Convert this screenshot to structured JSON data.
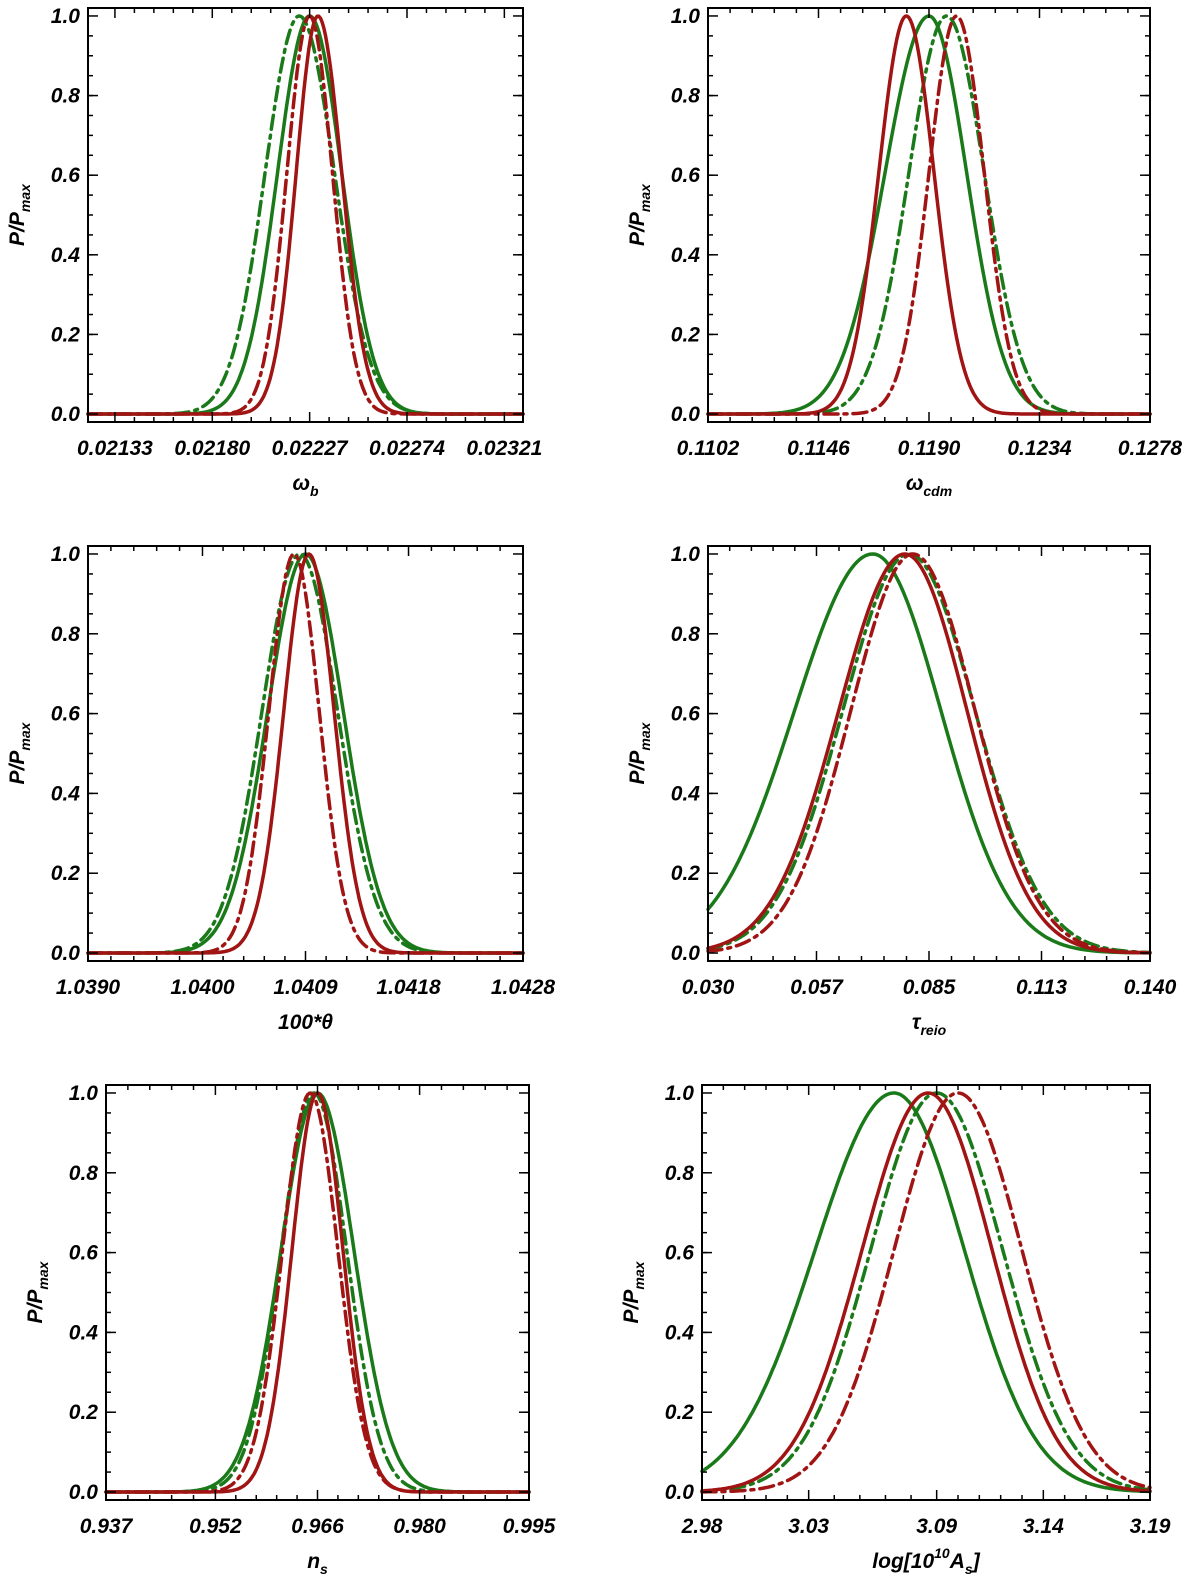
{
  "colors": {
    "green": "#1a7a1a",
    "red": "#a01414",
    "axis": "#000000"
  },
  "chart_data": [
    {
      "type": "line",
      "xlabel": "ωb",
      "xlabel_main": "ω",
      "xlabel_sub": "b",
      "ylabel": "P/Pmax",
      "ylabel_main": "P/P",
      "ylabel_sub": "max",
      "xlim": [
        0.0212,
        0.0233
      ],
      "ylim": [
        -0.02,
        1.02
      ],
      "xticks": [
        0.02133,
        0.0218,
        0.02227,
        0.02274,
        0.02321
      ],
      "xtick_labels": [
        "0.02133",
        "0.02180",
        "0.02227",
        "0.02274",
        "0.02321"
      ],
      "yticks": [
        0.0,
        0.2,
        0.4,
        0.6,
        0.8,
        1.0
      ],
      "ytick_labels": [
        "0.0",
        "0.2",
        "0.4",
        "0.6",
        "0.8",
        "1.0"
      ],
      "series": [
        {
          "name": "green solid",
          "color": "green",
          "dash": "solid",
          "mean": 0.02227,
          "sigma_left": 0.000155,
          "sigma_right": 0.000155
        },
        {
          "name": "green dash-dot",
          "color": "green",
          "dash": "dashdot",
          "mean": 0.02222,
          "sigma_left": 0.000165,
          "sigma_right": 0.00017
        },
        {
          "name": "red solid",
          "color": "red",
          "dash": "solid",
          "mean": 0.02231,
          "sigma_left": 0.000105,
          "sigma_right": 0.000115
        },
        {
          "name": "red dash-dot",
          "color": "red",
          "dash": "dashdot",
          "mean": 0.02227,
          "sigma_left": 0.00011,
          "sigma_right": 0.00011
        }
      ]
    },
    {
      "type": "line",
      "xlabel": "ωcdm",
      "xlabel_main": "ω",
      "xlabel_sub": "cdm",
      "ylabel": "P/Pmax",
      "ylabel_main": "P/P",
      "ylabel_sub": "max",
      "xlim": [
        0.1102,
        0.1278
      ],
      "ylim": [
        -0.02,
        1.02
      ],
      "xticks": [
        0.1102,
        0.1146,
        0.119,
        0.1234,
        0.1278
      ],
      "xtick_labels": [
        "0.1102",
        "0.1146",
        "0.1190",
        "0.1234",
        "0.1278"
      ],
      "yticks": [
        0.0,
        0.2,
        0.4,
        0.6,
        0.8,
        1.0
      ],
      "ytick_labels": [
        "0.0",
        "0.2",
        "0.4",
        "0.6",
        "0.8",
        "1.0"
      ],
      "series": [
        {
          "name": "green solid",
          "color": "green",
          "dash": "solid",
          "mean": 0.119,
          "sigma_left": 0.00175,
          "sigma_right": 0.0015
        },
        {
          "name": "green dash-dot",
          "color": "green",
          "dash": "dashdot",
          "mean": 0.1197,
          "sigma_left": 0.0015,
          "sigma_right": 0.0015
        },
        {
          "name": "red solid",
          "color": "red",
          "dash": "solid",
          "mean": 0.1181,
          "sigma_left": 0.0011,
          "sigma_right": 0.0011
        },
        {
          "name": "red dash-dot",
          "color": "red",
          "dash": "dashdot",
          "mean": 0.1201,
          "sigma_left": 0.0011,
          "sigma_right": 0.0011
        }
      ]
    },
    {
      "type": "line",
      "xlabel": "100*θ",
      "xlabel_main": "100*θ",
      "xlabel_sub": "",
      "ylabel": "P/Pmax",
      "ylabel_main": "P/P",
      "ylabel_sub": "max",
      "xlim": [
        1.039,
        1.0428
      ],
      "ylim": [
        -0.02,
        1.02
      ],
      "xticks": [
        1.039,
        1.04,
        1.0409,
        1.0418,
        1.0428
      ],
      "xtick_labels": [
        "1.0390",
        "1.0400",
        "1.0409",
        "1.0418",
        "1.0428"
      ],
      "yticks": [
        0.0,
        0.2,
        0.4,
        0.6,
        0.8,
        1.0
      ],
      "ytick_labels": [
        "0.0",
        "0.2",
        "0.4",
        "0.6",
        "0.8",
        "1.0"
      ],
      "series": [
        {
          "name": "green solid",
          "color": "green",
          "dash": "solid",
          "mean": 1.0409,
          "sigma_left": 0.00033,
          "sigma_right": 0.00033
        },
        {
          "name": "green dash-dot",
          "color": "green",
          "dash": "dashdot",
          "mean": 1.04085,
          "sigma_left": 0.00033,
          "sigma_right": 0.00033
        },
        {
          "name": "red solid",
          "color": "red",
          "dash": "solid",
          "mean": 1.04093,
          "sigma_left": 0.00022,
          "sigma_right": 0.00022
        },
        {
          "name": "red dash-dot",
          "color": "red",
          "dash": "dashdot",
          "mean": 1.0408,
          "sigma_left": 0.00022,
          "sigma_right": 0.00022
        }
      ]
    },
    {
      "type": "line",
      "xlabel": "τreio",
      "xlabel_main": "τ",
      "xlabel_sub": "reio",
      "ylabel": "P/Pmax",
      "ylabel_main": "P/P",
      "ylabel_sub": "max",
      "xlim": [
        0.03,
        0.14
      ],
      "ylim": [
        -0.02,
        1.02
      ],
      "xticks": [
        0.03,
        0.057,
        0.085,
        0.113,
        0.14
      ],
      "xtick_labels": [
        "0.030",
        "0.057",
        "0.085",
        "0.113",
        "0.140"
      ],
      "yticks": [
        0.0,
        0.2,
        0.4,
        0.6,
        0.8,
        1.0
      ],
      "ytick_labels": [
        "0.0",
        "0.2",
        "0.4",
        "0.6",
        "0.8",
        "1.0"
      ],
      "series": [
        {
          "name": "green solid",
          "color": "green",
          "dash": "solid",
          "mean": 0.071,
          "sigma_left": 0.0195,
          "sigma_right": 0.017
        },
        {
          "name": "green dash-dot",
          "color": "green",
          "dash": "dashdot",
          "mean": 0.08,
          "sigma_left": 0.0165,
          "sigma_right": 0.0165
        },
        {
          "name": "red solid",
          "color": "red",
          "dash": "solid",
          "mean": 0.079,
          "sigma_left": 0.0165,
          "sigma_right": 0.0155
        },
        {
          "name": "red dash-dot",
          "color": "red",
          "dash": "dashdot",
          "mean": 0.081,
          "sigma_left": 0.0155,
          "sigma_right": 0.0155
        }
      ]
    },
    {
      "type": "line",
      "xlabel": "ns",
      "xlabel_main": "n",
      "xlabel_sub": "s",
      "ylabel": "P/Pmax",
      "ylabel_main": "P/P",
      "ylabel_sub": "max",
      "xlim": [
        0.937,
        0.995
      ],
      "ylim": [
        -0.02,
        1.02
      ],
      "xticks": [
        0.937,
        0.952,
        0.966,
        0.98,
        0.995
      ],
      "xtick_labels": [
        "0.937",
        "0.952",
        "0.966",
        "0.980",
        "0.995"
      ],
      "yticks": [
        0.0,
        0.2,
        0.4,
        0.6,
        0.8,
        1.0
      ],
      "ytick_labels": [
        "0.0",
        "0.2",
        "0.4",
        "0.6",
        "0.8",
        "1.0"
      ],
      "series": [
        {
          "name": "green solid",
          "color": "green",
          "dash": "solid",
          "mean": 0.966,
          "sigma_left": 0.005,
          "sigma_right": 0.005
        },
        {
          "name": "green dash-dot",
          "color": "green",
          "dash": "dashdot",
          "mean": 0.9655,
          "sigma_left": 0.0045,
          "sigma_right": 0.0045
        },
        {
          "name": "red solid",
          "color": "red",
          "dash": "solid",
          "mean": 0.966,
          "sigma_left": 0.0035,
          "sigma_right": 0.0035
        },
        {
          "name": "red dash-dot",
          "color": "red",
          "dash": "dashdot",
          "mean": 0.965,
          "sigma_left": 0.0038,
          "sigma_right": 0.0038
        }
      ]
    },
    {
      "type": "line",
      "xlabel": "log[10^10 As]",
      "xlabel_main": "log[10",
      "xlabel_sup": "10",
      "xlabel_main2": "A",
      "xlabel_sub": "s",
      "xlabel_end": "]",
      "ylabel": "P/Pmax",
      "ylabel_main": "P/P",
      "ylabel_sub": "max",
      "xlim": [
        2.98,
        3.19
      ],
      "ylim": [
        -0.02,
        1.02
      ],
      "xticks": [
        2.98,
        3.03,
        3.09,
        3.14,
        3.19
      ],
      "xtick_labels": [
        "2.98",
        "3.03",
        "3.09",
        "3.14",
        "3.19"
      ],
      "yticks": [
        0.0,
        0.2,
        0.4,
        0.6,
        0.8,
        1.0
      ],
      "ytick_labels": [
        "0.0",
        "0.2",
        "0.4",
        "0.6",
        "0.8",
        "1.0"
      ],
      "series": [
        {
          "name": "green solid",
          "color": "green",
          "dash": "solid",
          "mean": 3.07,
          "sigma_left": 0.037,
          "sigma_right": 0.033
        },
        {
          "name": "green dash-dot",
          "color": "green",
          "dash": "dashdot",
          "mean": 3.09,
          "sigma_left": 0.031,
          "sigma_right": 0.031
        },
        {
          "name": "red solid",
          "color": "red",
          "dash": "solid",
          "mean": 3.086,
          "sigma_left": 0.031,
          "sigma_right": 0.03
        },
        {
          "name": "red dash-dot",
          "color": "red",
          "dash": "dashdot",
          "mean": 3.1,
          "sigma_left": 0.03,
          "sigma_right": 0.03
        }
      ]
    }
  ]
}
